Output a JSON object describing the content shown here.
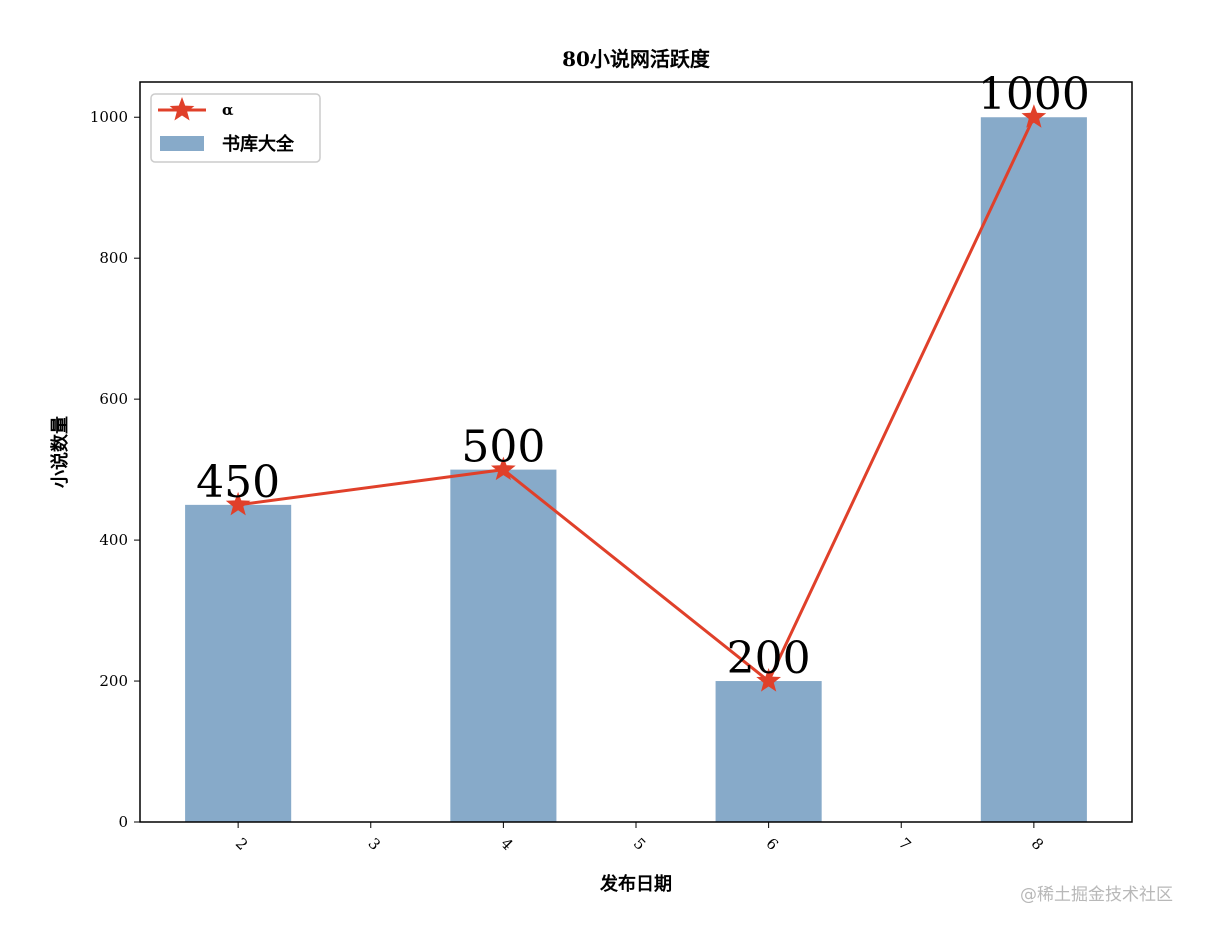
{
  "chart_data": {
    "type": "bar+line",
    "title": "80小说网活跃度",
    "xlabel": "发布日期",
    "ylabel": "小说数量",
    "xlim": [
      1.26,
      8.74
    ],
    "ylim": [
      0,
      1050
    ],
    "xticks": [
      2,
      3,
      4,
      5,
      6,
      7,
      8
    ],
    "yticks": [
      0,
      200,
      400,
      600,
      800,
      1000
    ],
    "x": [
      2,
      4,
      6,
      8
    ],
    "series": [
      {
        "name": "α",
        "kind": "line",
        "marker": "star",
        "values": [
          450,
          500,
          200,
          1000
        ],
        "color": "#e0402a"
      },
      {
        "name": "书库大全",
        "kind": "bar",
        "values": [
          450,
          500,
          200,
          1000
        ],
        "color": "#87aac9",
        "bar_width": 0.8
      }
    ],
    "data_labels": [
      "450",
      "500",
      "200",
      "1000"
    ],
    "legend": "top-left",
    "grid": false,
    "xtick_rotation": 45
  },
  "watermark": "@稀土掘金技术社区"
}
